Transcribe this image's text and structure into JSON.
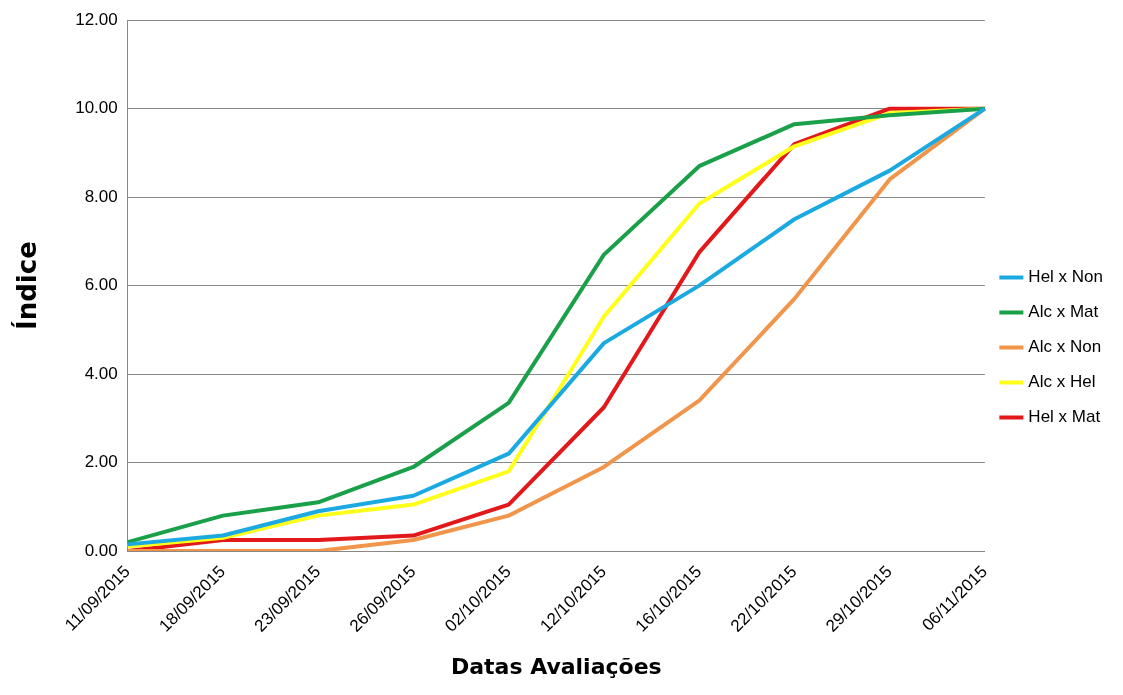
{
  "chart_data": {
    "type": "line",
    "xlabel": "Datas Avaliações",
    "ylabel": "Índice",
    "categories": [
      "11/09/2015",
      "18/09/2015",
      "23/09/2015",
      "26/09/2015",
      "02/10/2015",
      "12/10/2015",
      "16/10/2015",
      "22/10/2015",
      "29/10/2015",
      "06/11/2015"
    ],
    "series": [
      {
        "name": "Hel x Non",
        "color": "#1ba9e1",
        "values": [
          0.15,
          0.35,
          0.9,
          1.25,
          2.2,
          4.7,
          6.0,
          7.5,
          8.6,
          10.0
        ]
      },
      {
        "name": "Alc x Mat",
        "color": "#1ba04a",
        "values": [
          0.2,
          0.8,
          1.1,
          1.9,
          3.35,
          6.7,
          8.7,
          9.65,
          9.85,
          10.0
        ]
      },
      {
        "name": "Alc x Non",
        "color": "#f0954a",
        "values": [
          0.0,
          0.0,
          0.0,
          0.25,
          0.8,
          1.9,
          3.4,
          5.7,
          8.4,
          10.0
        ]
      },
      {
        "name": "Alc x Hel",
        "color": "#ffff1a",
        "values": [
          0.1,
          0.3,
          0.8,
          1.05,
          1.8,
          5.3,
          7.85,
          9.15,
          9.9,
          10.0
        ]
      },
      {
        "name": "Hel x Mat",
        "color": "#e2181b",
        "values": [
          0.0,
          0.25,
          0.25,
          0.35,
          1.05,
          3.25,
          6.75,
          9.2,
          10.0,
          10.0
        ]
      }
    ],
    "ylim": [
      0,
      12
    ],
    "yticks": [
      {
        "value": 0,
        "label": "0.00"
      },
      {
        "value": 2,
        "label": "2.00"
      },
      {
        "value": 4,
        "label": "4.00"
      },
      {
        "value": 6,
        "label": "6.00"
      },
      {
        "value": 8,
        "label": "8.00"
      },
      {
        "value": 10,
        "label": "10.00"
      },
      {
        "value": 12,
        "label": "12.00"
      }
    ],
    "grid": "y",
    "legend": "right",
    "marker": "none",
    "line_style": "solid"
  }
}
